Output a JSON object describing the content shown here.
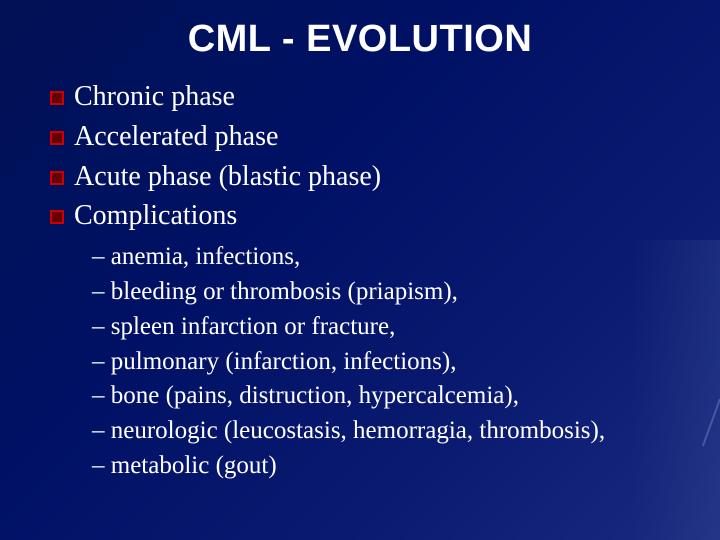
{
  "slide": {
    "title": "CML - EVOLUTION",
    "title_color": "#ffffff",
    "title_fontsize": 38,
    "title_fontfamily": "Arial",
    "background_gradient": [
      "#001155",
      "#001166",
      "#0a1a70",
      "#1a2a80"
    ],
    "text_color": "#ffffff",
    "bullets": [
      {
        "text": "Chronic phase"
      },
      {
        "text": "Accelerated phase"
      },
      {
        "text": "Acute phase (blastic phase)"
      },
      {
        "text": "Complications"
      }
    ],
    "bullet_fontsize": 28,
    "bullet_icon": {
      "outer_color": "#cc0000",
      "inner_color": "#660000",
      "size": 14
    },
    "sub_bullets": [
      "anemia, infections,",
      "bleeding or thrombosis (priapism),",
      "spleen infarction or fracture,",
      "pulmonary (infarction, infections),",
      "bone (pains, distruction, hypercalcemia),",
      "neurologic (leucostasis, hemorragia, thrombosis),",
      "metabolic (gout)"
    ],
    "sub_bullet_fontsize": 25,
    "sub_bullet_prefix": "–"
  }
}
